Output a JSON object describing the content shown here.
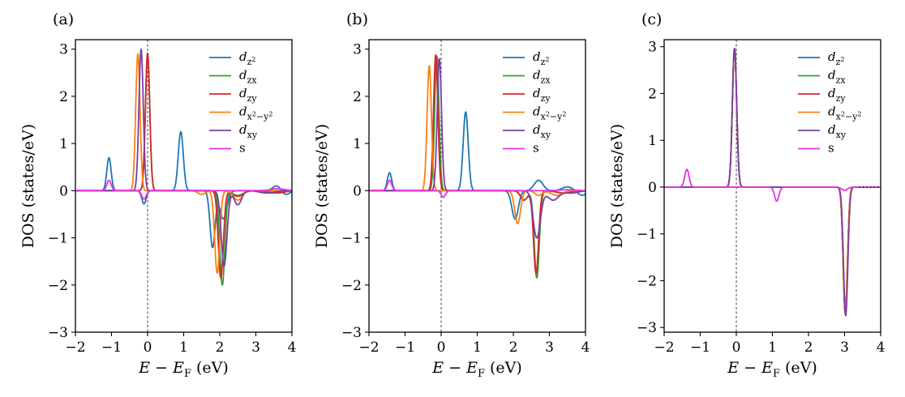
{
  "chart_data": [
    {
      "type": "line",
      "panel_label": "(a)",
      "xlabel": "E − E_F (eV)",
      "ylabel": "DOS (states/eV)",
      "xlim": [
        -2,
        4
      ],
      "ylim": [
        -3,
        3.2
      ],
      "xticks": [
        -2,
        -1,
        0,
        1,
        2,
        3,
        4
      ],
      "yticks": [
        -3,
        -2,
        -1,
        0,
        1,
        2,
        3
      ],
      "legend_position": "top-right",
      "fermi_line_x": 0,
      "series": [
        {
          "name": "dz2",
          "color": "#1f77b4",
          "peaks": [
            [
              -1.07,
              0.7,
              0.06
            ],
            [
              0.92,
              1.25,
              0.07
            ],
            [
              -0.1,
              -0.28,
              0.06
            ],
            [
              1.8,
              -1.2,
              0.07
            ],
            [
              2.1,
              -0.6,
              0.1
            ],
            [
              3.6,
              0.12,
              0.12
            ],
            [
              3.8,
              -0.1,
              0.12
            ]
          ]
        },
        {
          "name": "dzx",
          "color": "#2ca02c",
          "peaks": [
            [
              0.0,
              2.9,
              0.06
            ],
            [
              2.07,
              -2.0,
              0.07
            ],
            [
              2.5,
              -0.1,
              0.15
            ],
            [
              3.5,
              -0.05,
              0.2
            ]
          ]
        },
        {
          "name": "dzy",
          "color": "#d62728",
          "peaks": [
            [
              0.0,
              2.92,
              0.06
            ],
            [
              2.03,
              -1.85,
              0.07
            ],
            [
              2.5,
              -0.12,
              0.15
            ],
            [
              3.6,
              -0.05,
              0.2
            ]
          ]
        },
        {
          "name": "dx2-y2",
          "color": "#ff7f0e",
          "peaks": [
            [
              -0.27,
              2.9,
              0.06
            ],
            [
              1.93,
              -1.75,
              0.07
            ],
            [
              1.5,
              -0.08,
              0.1
            ],
            [
              2.5,
              -0.2,
              0.12
            ]
          ]
        },
        {
          "name": "dxy",
          "color": "#7b3ea6",
          "peaks": [
            [
              -0.18,
              3.0,
              0.06
            ],
            [
              2.12,
              -1.6,
              0.08
            ],
            [
              2.5,
              -0.3,
              0.1
            ],
            [
              3.3,
              -0.05,
              0.2
            ]
          ]
        },
        {
          "name": "s",
          "color": "#e930e3",
          "peaks": [
            [
              -1.07,
              0.22,
              0.06
            ],
            [
              -0.1,
              -0.18,
              0.06
            ],
            [
              3.6,
              0.04,
              0.2
            ]
          ]
        }
      ]
    },
    {
      "type": "line",
      "panel_label": "(b)",
      "xlabel": "E − E_F (eV)",
      "ylabel": "DOS (states/eV)",
      "xlim": [
        -2,
        4
      ],
      "ylim": [
        -3,
        3.2
      ],
      "xticks": [
        -2,
        -1,
        0,
        1,
        2,
        3,
        4
      ],
      "yticks": [
        -3,
        -2,
        -1,
        0,
        1,
        2,
        3
      ],
      "legend_position": "top-right",
      "fermi_line_x": 0,
      "series": [
        {
          "name": "dz2",
          "color": "#1f77b4",
          "peaks": [
            [
              -1.43,
              0.38,
              0.06
            ],
            [
              0.68,
              1.67,
              0.07
            ],
            [
              2.05,
              -0.6,
              0.09
            ],
            [
              2.7,
              0.22,
              0.12
            ],
            [
              3.5,
              0.08,
              0.15
            ],
            [
              3.9,
              -0.1,
              0.12
            ]
          ]
        },
        {
          "name": "dzx",
          "color": "#2ca02c",
          "peaks": [
            [
              -0.12,
              2.85,
              0.06
            ],
            [
              2.65,
              -1.85,
              0.07
            ],
            [
              2.3,
              -0.2,
              0.1
            ],
            [
              3.4,
              -0.05,
              0.2
            ]
          ]
        },
        {
          "name": "dzy",
          "color": "#d62728",
          "peaks": [
            [
              -0.15,
              2.88,
              0.06
            ],
            [
              2.63,
              -1.75,
              0.07
            ],
            [
              2.3,
              -0.2,
              0.1
            ],
            [
              3.4,
              -0.05,
              0.2
            ]
          ]
        },
        {
          "name": "dx2-y2",
          "color": "#ff7f0e",
          "peaks": [
            [
              -0.33,
              2.65,
              0.06
            ],
            [
              2.12,
              -0.7,
              0.08
            ],
            [
              2.7,
              -0.1,
              0.1
            ],
            [
              3.2,
              -0.1,
              0.15
            ]
          ]
        },
        {
          "name": "dxy",
          "color": "#7b3ea6",
          "peaks": [
            [
              -0.05,
              2.8,
              0.06
            ],
            [
              2.65,
              -1.0,
              0.1
            ],
            [
              3.1,
              -0.2,
              0.15
            ],
            [
              3.6,
              -0.05,
              0.2
            ]
          ]
        },
        {
          "name": "s",
          "color": "#e930e3",
          "peaks": [
            [
              -1.43,
              0.22,
              0.06
            ],
            [
              0.06,
              -0.14,
              0.06
            ],
            [
              3.5,
              0.02,
              0.2
            ]
          ]
        }
      ]
    },
    {
      "type": "line",
      "panel_label": "(c)",
      "xlabel": "E − E_F (eV)",
      "ylabel": "DOS (states/eV)",
      "xlim": [
        -2,
        4
      ],
      "ylim": [
        -3.1,
        3.15
      ],
      "xticks": [
        -2,
        -1,
        0,
        1,
        2,
        3,
        4
      ],
      "yticks": [
        -3,
        -2,
        -1,
        0,
        1,
        2,
        3
      ],
      "legend_position": "top-right",
      "fermi_line_x": 0,
      "zero_dotted_x": [
        3.4,
        4
      ],
      "series": [
        {
          "name": "dz2",
          "color": "#1f77b4",
          "peaks": [
            [
              -0.05,
              2.95,
              0.06
            ],
            [
              3.02,
              -2.65,
              0.06
            ]
          ]
        },
        {
          "name": "dzx",
          "color": "#2ca02c",
          "peaks": [
            [
              -0.05,
              2.95,
              0.06
            ],
            [
              3.02,
              -2.7,
              0.06
            ]
          ]
        },
        {
          "name": "dzy",
          "color": "#d62728",
          "peaks": [
            [
              -0.05,
              2.95,
              0.06
            ],
            [
              3.02,
              -2.7,
              0.06
            ]
          ]
        },
        {
          "name": "dx2-y2",
          "color": "#ff7f0e",
          "peaks": [
            [
              -0.05,
              2.95,
              0.06
            ],
            [
              3.02,
              -2.6,
              0.06
            ]
          ]
        },
        {
          "name": "dxy",
          "color": "#7b3ea6",
          "peaks": [
            [
              -0.05,
              2.97,
              0.06
            ],
            [
              3.03,
              -2.75,
              0.06
            ]
          ]
        },
        {
          "name": "s",
          "color": "#e930e3",
          "peaks": [
            [
              -1.37,
              0.38,
              0.06
            ],
            [
              1.12,
              -0.3,
              0.06
            ],
            [
              3.0,
              -0.07,
              0.08
            ]
          ]
        }
      ]
    }
  ]
}
